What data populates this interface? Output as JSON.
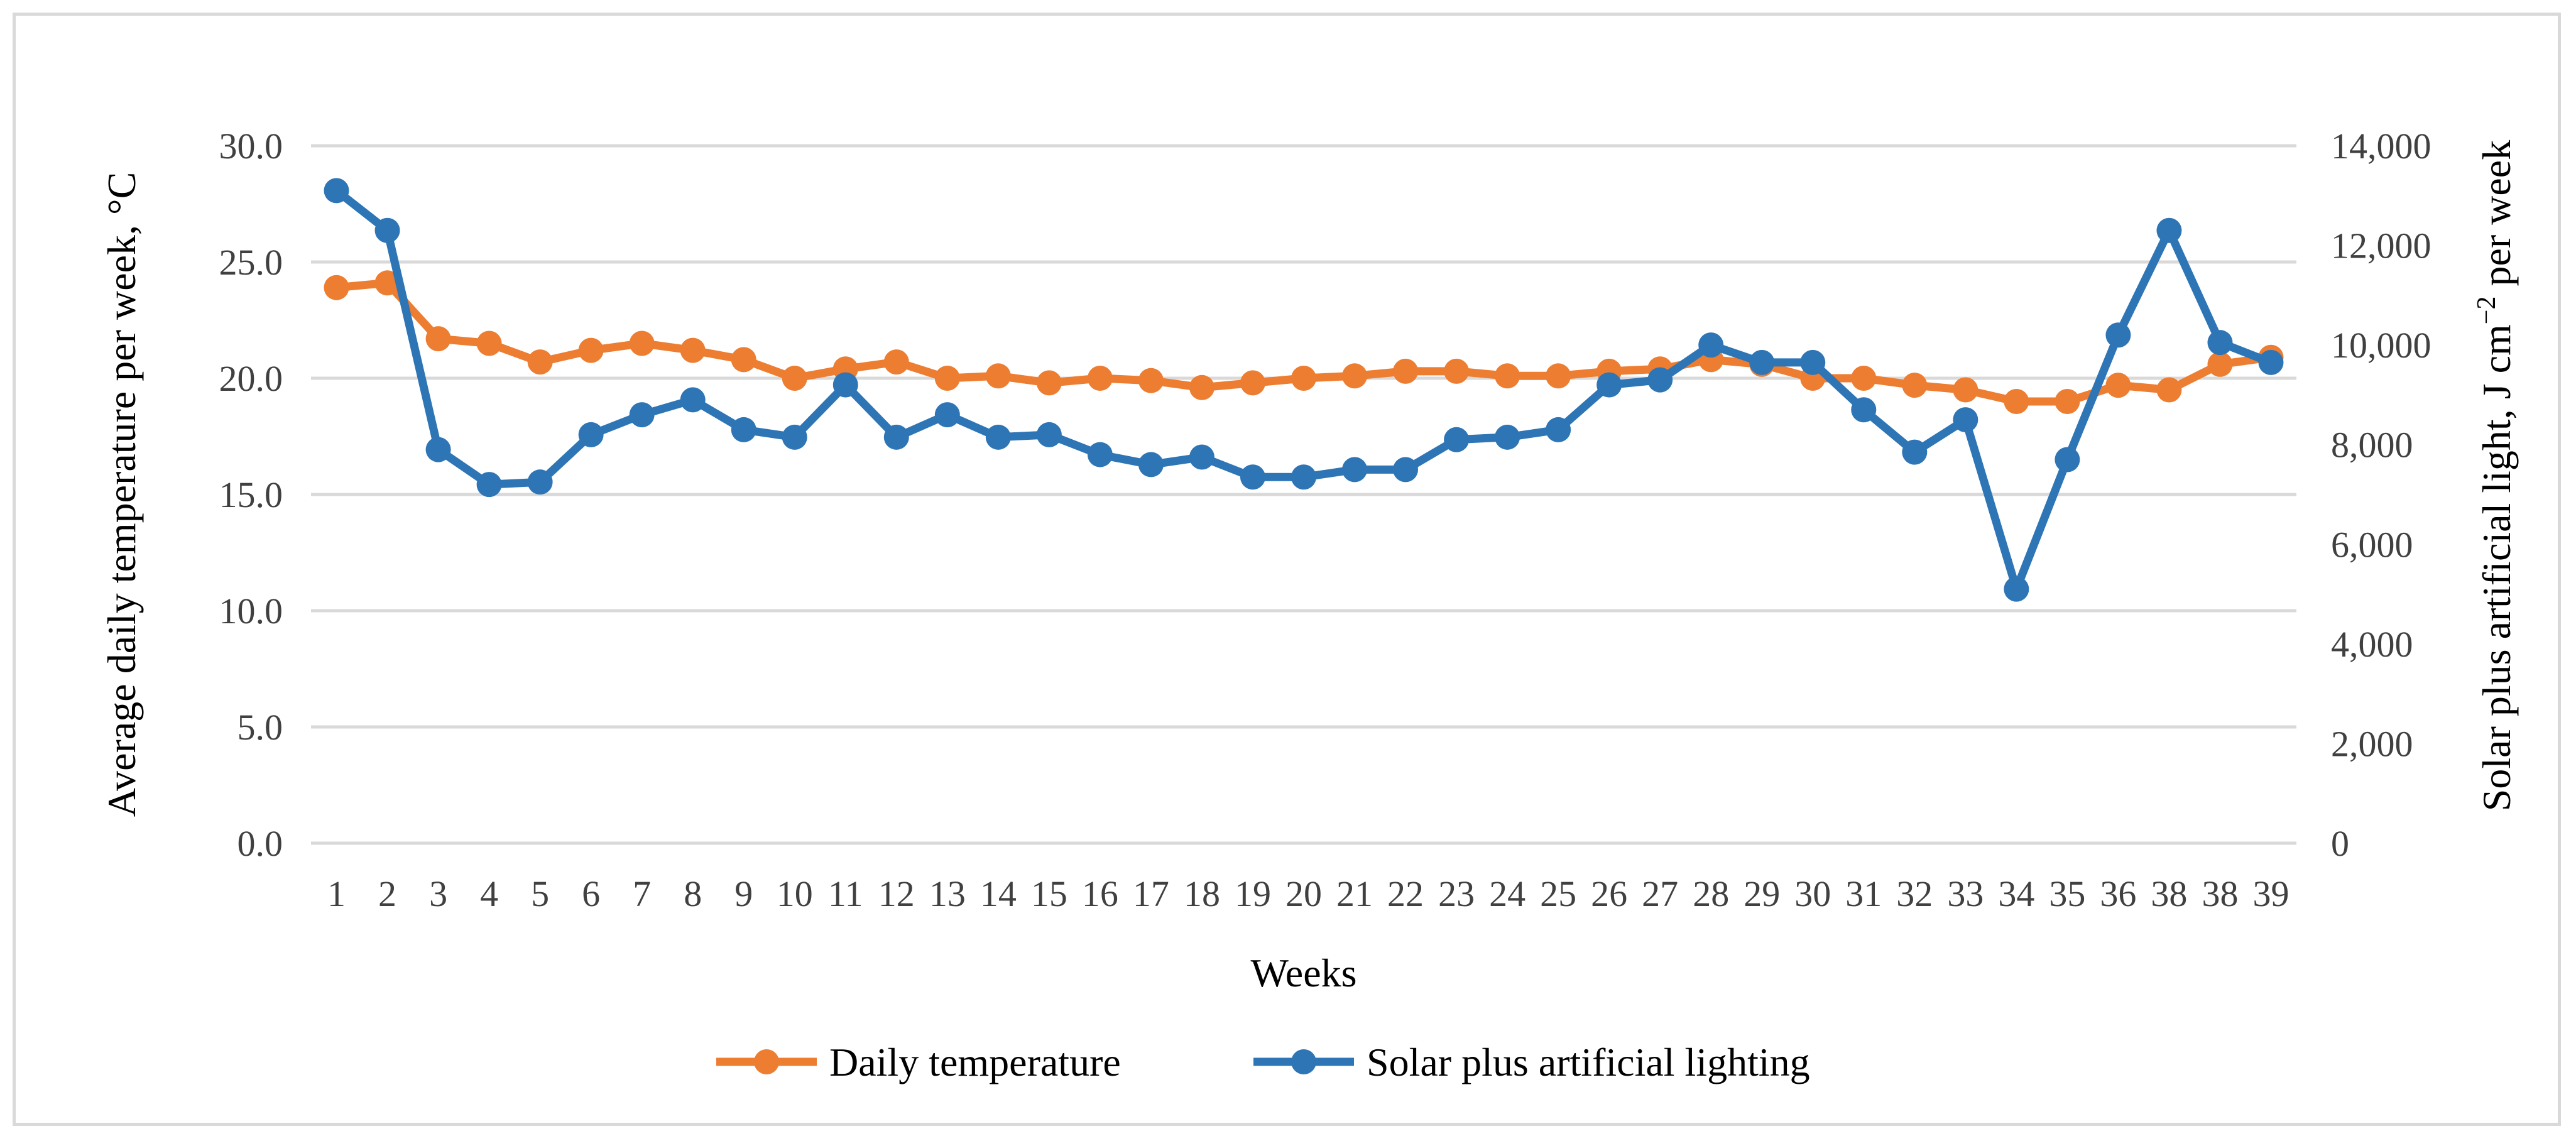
{
  "chart_data": {
    "type": "line",
    "title": "",
    "xlabel": "Weeks",
    "ylabel": "Average daily temperature per week, °C",
    "y2label_main": "Solar plus artificial light, J cm",
    "y2label_sup": "−2",
    "y2label_tail": " per week",
    "categories": [
      "1",
      "2",
      "3",
      "4",
      "5",
      "6",
      "7",
      "8",
      "9",
      "10",
      "11",
      "12",
      "13",
      "14",
      "15",
      "16",
      "17",
      "18",
      "19",
      "20",
      "21",
      "22",
      "23",
      "24",
      "25",
      "26",
      "27",
      "28",
      "29",
      "30",
      "31",
      "32",
      "33",
      "34",
      "35",
      "36",
      "38",
      "38",
      "39"
    ],
    "ylim": [
      0,
      30
    ],
    "y_ticks": [
      "0.0",
      "5.0",
      "10.0",
      "15.0",
      "20.0",
      "25.0",
      "30.0"
    ],
    "y2lim": [
      0,
      14000
    ],
    "y2_ticks": [
      "0",
      "2,000",
      "4,000",
      "6,000",
      "8,000",
      "10,000",
      "12,000",
      "14,000"
    ],
    "grid": true,
    "legend_position": "bottom",
    "series": [
      {
        "name": "Daily temperature",
        "axis": "left",
        "color": "#ED7D31",
        "values": [
          23.9,
          24.1,
          21.7,
          21.5,
          20.7,
          21.2,
          21.5,
          21.2,
          20.8,
          20.0,
          20.4,
          20.7,
          20.0,
          20.1,
          19.8,
          20.0,
          19.9,
          19.6,
          19.8,
          20.0,
          20.1,
          20.3,
          20.3,
          20.1,
          20.1,
          20.3,
          20.4,
          20.8,
          20.6,
          20.0,
          20.0,
          19.7,
          19.5,
          19.0,
          19.0,
          19.7,
          19.5,
          20.6,
          20.9
        ]
      },
      {
        "name": "Solar plus artificial lighting",
        "axis": "right",
        "color": "#2E75B6",
        "values": [
          13100,
          12300,
          7900,
          7200,
          7250,
          8200,
          8600,
          8900,
          8300,
          8150,
          9200,
          8150,
          8600,
          8150,
          8200,
          7800,
          7600,
          7750,
          7350,
          7350,
          7500,
          7500,
          8100,
          8150,
          8300,
          9200,
          9300,
          10000,
          9650,
          9650,
          8700,
          7850,
          8500,
          5100,
          7700,
          10200,
          12300,
          10050,
          9650
        ]
      }
    ]
  }
}
